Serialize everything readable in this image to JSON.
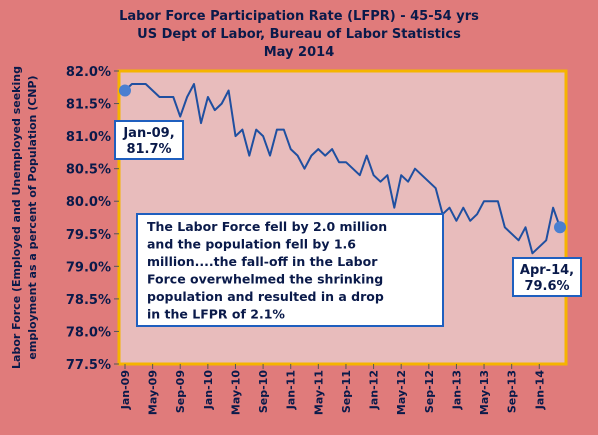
{
  "colors": {
    "page_background": "#e07b7b",
    "plot_background": "#e8bcbc",
    "plot_border": "#f5b400",
    "line": "#1f4fa0",
    "marker": "#4a7fd0",
    "callout_border": "#1f5fbf",
    "text": "#0a1a4a"
  },
  "chart_data": {
    "type": "line",
    "title_lines": [
      "Labor Force Participation Rate (LFPR) - 45-54 yrs",
      "US Dept of Labor, Bureau of Labor Statistics",
      "May 2014"
    ],
    "ylabel_lines": [
      "Labor Force (Employed and Unemployed seeking",
      "employment as a percent of Population (CNP)"
    ],
    "ylim": [
      77.5,
      82.0
    ],
    "y_ticks": [
      77.5,
      78.0,
      78.5,
      79.0,
      79.5,
      80.0,
      80.5,
      81.0,
      81.5,
      82.0
    ],
    "y_tick_labels": [
      "77.5%",
      "78.0%",
      "78.5%",
      "79.0%",
      "79.5%",
      "80.0%",
      "80.5%",
      "81.0%",
      "81.5%",
      "82.0%"
    ],
    "x_tick_labels": [
      "Jan-09",
      "May-09",
      "Sep-09",
      "Jan-10",
      "May-10",
      "Sep-10",
      "Jan-11",
      "May-11",
      "Sep-11",
      "Jan-12",
      "May-12",
      "Sep-12",
      "Jan-13",
      "May-13",
      "Sep-13",
      "Jan-14"
    ],
    "grid": false,
    "legend": "none",
    "series": [
      {
        "x": [
          "2009-01",
          "2009-02",
          "2009-03",
          "2009-04",
          "2009-05",
          "2009-06",
          "2009-07",
          "2009-08",
          "2009-09",
          "2009-10",
          "2009-11",
          "2009-12",
          "2010-01",
          "2010-02",
          "2010-03",
          "2010-04",
          "2010-05",
          "2010-06",
          "2010-07",
          "2010-08",
          "2010-09",
          "2010-10",
          "2010-11",
          "2010-12",
          "2011-01",
          "2011-02",
          "2011-03",
          "2011-04",
          "2011-05",
          "2011-06",
          "2011-07",
          "2011-08",
          "2011-09",
          "2011-10",
          "2011-11",
          "2011-12",
          "2012-01",
          "2012-02",
          "2012-03",
          "2012-04",
          "2012-05",
          "2012-06",
          "2012-07",
          "2012-08",
          "2012-09",
          "2012-10",
          "2012-11",
          "2012-12",
          "2013-01",
          "2013-02",
          "2013-03",
          "2013-04",
          "2013-05",
          "2013-06",
          "2013-07",
          "2013-08",
          "2013-09",
          "2013-10",
          "2013-11",
          "2013-12",
          "2014-01",
          "2014-02",
          "2014-03",
          "2014-04"
        ],
        "values": [
          81.7,
          81.8,
          81.8,
          81.8,
          81.7,
          81.6,
          81.6,
          81.6,
          81.3,
          81.6,
          81.8,
          81.2,
          81.6,
          81.4,
          81.5,
          81.7,
          81.0,
          81.1,
          80.7,
          81.1,
          81.0,
          80.7,
          81.1,
          81.1,
          80.8,
          80.7,
          80.5,
          80.7,
          80.8,
          80.7,
          80.8,
          80.6,
          80.6,
          80.5,
          80.4,
          80.7,
          80.4,
          80.3,
          80.4,
          79.9,
          80.4,
          80.3,
          80.5,
          80.4,
          80.3,
          80.2,
          79.8,
          79.9,
          79.7,
          79.9,
          79.7,
          79.8,
          80.0,
          80.0,
          80.0,
          79.6,
          79.5,
          79.4,
          79.6,
          79.2,
          79.3,
          79.4,
          79.9,
          79.6
        ]
      }
    ],
    "start_point": {
      "x": "2009-01",
      "value": 81.7
    },
    "end_point": {
      "x": "2014-04",
      "value": 79.6
    },
    "annotations": {
      "start_label": [
        "Jan-09,",
        "81.7%"
      ],
      "end_label": [
        "Apr-14,",
        "79.6%"
      ],
      "note_lines": [
        "The Labor Force fell by 2.0 million",
        "and the population fell by 1.6",
        "million....the  fall-off in the Labor",
        "Force  overwhelmed the shrinking",
        "population and resulted in  a drop",
        "in the LFPR of 2.1%"
      ]
    }
  }
}
